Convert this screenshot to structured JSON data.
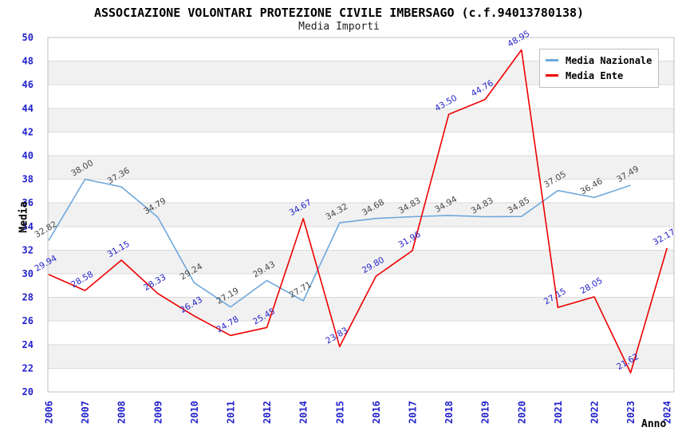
{
  "chart_data": {
    "type": "line",
    "title": "ASSOCIAZIONE VOLONTARI PROTEZIONE CIVILE IMBERSAGO (c.f.94013780138)",
    "subtitle": "Media Importi",
    "xlabel": "Anno",
    "ylabel": "Media",
    "ylim": [
      20,
      50
    ],
    "ytick_step": 2,
    "grid": "horizontal gridlines with alternating gray bands",
    "legend_position": "top-right",
    "categories": [
      "2006",
      "2007",
      "2008",
      "2009",
      "2010",
      "2011",
      "2012",
      "2014",
      "2015",
      "2016",
      "2017",
      "2018",
      "2019",
      "2020",
      "2021",
      "2022",
      "2023",
      "2024"
    ],
    "series": [
      {
        "name": "Media Nazionale",
        "color": "#6FA8DC",
        "label_color": "#474747",
        "values": [
          32.82,
          38.0,
          37.36,
          34.79,
          29.24,
          27.19,
          29.43,
          27.71,
          34.32,
          34.68,
          34.83,
          34.94,
          34.83,
          34.85,
          37.05,
          36.46,
          37.49,
          null
        ]
      },
      {
        "name": "Media Ente",
        "color": "#EE0000",
        "label_color": "#2222CC",
        "values": [
          29.94,
          28.58,
          31.15,
          28.33,
          26.43,
          24.78,
          25.45,
          34.67,
          23.83,
          29.8,
          31.96,
          43.5,
          44.76,
          48.95,
          27.15,
          28.05,
          21.62,
          32.17
        ]
      }
    ],
    "colors": {
      "axis_text": "#2222CC",
      "grid_line": "#DADADA",
      "band_fill": "#F1F1F1",
      "plot_border": "#C0C0C0",
      "background": "#FFFFFF"
    }
  }
}
